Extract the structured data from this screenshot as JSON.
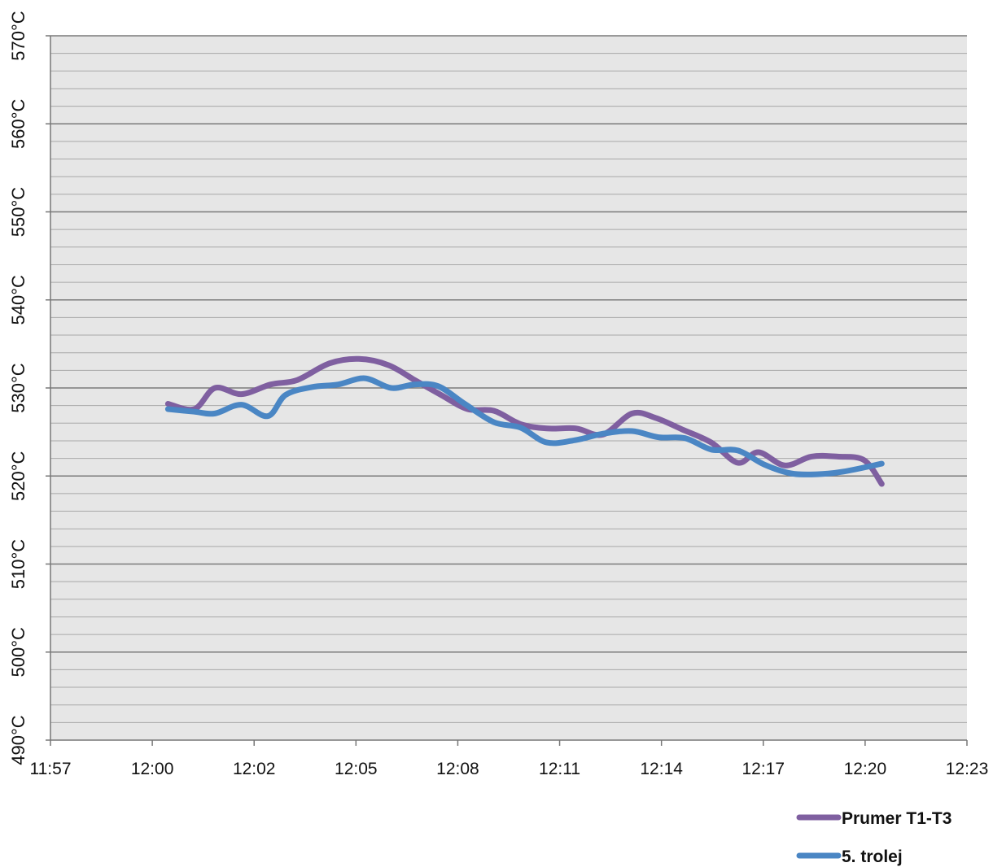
{
  "chart_data": {
    "type": "line",
    "y_axis": {
      "min": 490,
      "max": 570,
      "major_step": 10,
      "minor_step": 2,
      "tick_labels": [
        "490°C",
        "500°C",
        "510°C",
        "520°C",
        "530°C",
        "540°C",
        "550°C",
        "560°C",
        "570°C"
      ]
    },
    "x_axis": {
      "min": "11:57",
      "max": "12:23",
      "tick_labels": [
        "11:57",
        "12:00",
        "12:02",
        "12:05",
        "12:08",
        "12:11",
        "12:14",
        "12:17",
        "12:20",
        "12:23"
      ]
    },
    "grid": true,
    "legend_position": "bottom-right",
    "series": [
      {
        "name": "Prumer T1-T3",
        "color": "#7f5fa0",
        "x": [
          "12:00:20",
          "12:01:05",
          "12:01:40",
          "12:02:25",
          "12:03:15",
          "12:04:00",
          "12:04:55",
          "12:05:45",
          "12:06:35",
          "12:07:20",
          "12:08:05",
          "12:08:50",
          "12:09:35",
          "12:10:20",
          "12:11:05",
          "12:11:55",
          "12:12:40",
          "12:13:30",
          "12:14:10",
          "12:14:55",
          "12:15:45",
          "12:16:30",
          "12:17:05",
          "12:17:50",
          "12:18:35",
          "12:19:20",
          "12:20:05",
          "12:20:35"
        ],
        "values": [
          528.2,
          527.6,
          530.0,
          529.3,
          530.4,
          530.9,
          532.8,
          533.3,
          532.6,
          530.9,
          529.2,
          527.6,
          527.4,
          525.9,
          525.4,
          525.4,
          524.7,
          527.1,
          526.6,
          525.3,
          523.8,
          521.5,
          522.7,
          521.2,
          522.2,
          522.2,
          521.8,
          519.1
        ]
      },
      {
        "name": "5. trolej",
        "color": "#4a86c4",
        "x": [
          "12:00:20",
          "12:01:05",
          "12:01:40",
          "12:02:25",
          "12:03:10",
          "12:03:40",
          "12:04:25",
          "12:05:10",
          "12:05:55",
          "12:06:40",
          "12:07:20",
          "12:08:00",
          "12:08:45",
          "12:09:35",
          "12:10:20",
          "12:11:05",
          "12:11:55",
          "12:12:40",
          "12:13:30",
          "12:14:15",
          "12:15:00",
          "12:15:45",
          "12:16:30",
          "12:17:15",
          "12:18:00",
          "12:18:45",
          "12:19:30",
          "12:20:35"
        ],
        "values": [
          527.6,
          527.3,
          527.1,
          528.1,
          526.8,
          529.2,
          530.1,
          530.4,
          531.1,
          530.0,
          530.4,
          530.2,
          528.2,
          526.1,
          525.5,
          523.8,
          524.1,
          524.8,
          525.1,
          524.4,
          524.3,
          523.0,
          522.9,
          521.3,
          520.3,
          520.2,
          520.5,
          521.4
        ]
      }
    ]
  }
}
